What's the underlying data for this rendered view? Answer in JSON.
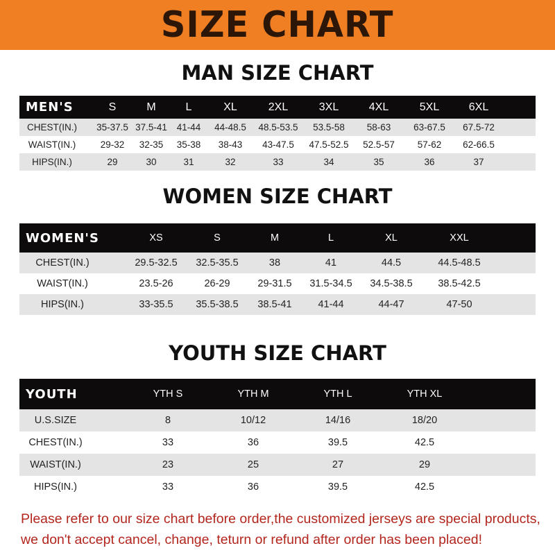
{
  "title": "SIZE CHART",
  "tables": [
    {
      "key": "men",
      "title": "MAN SIZE CHART",
      "header": "MEN'S",
      "sizes": [
        "S",
        "M",
        "L",
        "XL",
        "2XL",
        "3XL",
        "4XL",
        "5XL",
        "6XL"
      ],
      "rows": [
        {
          "label": "CHEST(IN.)",
          "values": [
            "35-37.5",
            "37.5-41",
            "41-44",
            "44-48.5",
            "48.5-53.5",
            "53.5-58",
            "58-63",
            "63-67.5",
            "67.5-72"
          ]
        },
        {
          "label": "WAIST(IN.)",
          "values": [
            "29-32",
            "32-35",
            "35-38",
            "38-43",
            "43-47.5",
            "47.5-52.5",
            "52.5-57",
            "57-62",
            "62-66.5"
          ]
        },
        {
          "label": "HIPS(IN.)",
          "values": [
            "29",
            "30",
            "31",
            "32",
            "33",
            "34",
            "35",
            "36",
            "37"
          ]
        }
      ]
    },
    {
      "key": "women",
      "title": "WOMEN SIZE CHART",
      "header": "WOMEN'S",
      "sizes": [
        "XS",
        "S",
        "M",
        "L",
        "XL",
        "XXL"
      ],
      "rows": [
        {
          "label": "CHEST(IN.)",
          "values": [
            "29.5-32.5",
            "32.5-35.5",
            "38",
            "41",
            "44.5",
            "44.5-48.5"
          ]
        },
        {
          "label": "WAIST(IN.)",
          "values": [
            "23.5-26",
            "26-29",
            "29-31.5",
            "31.5-34.5",
            "34.5-38.5",
            "38.5-42.5"
          ]
        },
        {
          "label": "HIPS(IN.)",
          "values": [
            "33-35.5",
            "35.5-38.5",
            "38.5-41",
            "41-44",
            "44-47",
            "47-50"
          ]
        }
      ]
    },
    {
      "key": "youth",
      "title": "YOUTH SIZE CHART",
      "header": "YOUTH",
      "sizes": [
        "YTH S",
        "YTH M",
        "YTH L",
        "YTH XL"
      ],
      "rows": [
        {
          "label": "U.S.SIZE",
          "values": [
            "8",
            "10/12",
            "14/16",
            "18/20"
          ]
        },
        {
          "label": "CHEST(IN.)",
          "values": [
            "33",
            "36",
            "39.5",
            "42.5"
          ]
        },
        {
          "label": "WAIST(IN.)",
          "values": [
            "23",
            "25",
            "27",
            "29"
          ]
        },
        {
          "label": "HIPS(IN.)",
          "values": [
            "33",
            "36",
            "39.5",
            "42.5"
          ]
        }
      ]
    }
  ],
  "notice": {
    "line1": "Please refer to our size chart before order,the customized jerseys are special products,",
    "line2": "we don't accept cancel, change, teturn or refund after order has been placed!"
  },
  "colors": {
    "banner": "#ef7f22",
    "header_row": "#0d0b0b",
    "stripe": "#e4e4e4",
    "notice": "#b3261e"
  }
}
